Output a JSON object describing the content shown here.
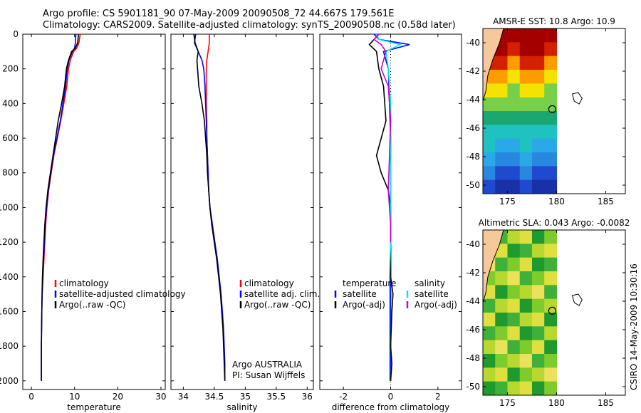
{
  "header": {
    "line1": "Argo profile: CS 5901181_90 07-May-2009 20090508_72 44.667S 179.561E",
    "line2": "Climatology: CARS2009. Satellite-adjusted climatology: synTS_20090508.nc (0.58d later)"
  },
  "side_label": "CSIRO 14-May-2009 10:30:16",
  "colors": {
    "climatology": "#ff0000",
    "satellite": "#0000ff",
    "argo": "#000000",
    "sal_satellite": "#00e5ee",
    "sal_argo": "#cc00cc",
    "land": "#f7c89b"
  },
  "chart_data": [
    {
      "type": "line",
      "panel": "temperature",
      "xlabel": "temperature",
      "ylabel": "",
      "xlim": [
        -2,
        31
      ],
      "ylim": [
        2050,
        0
      ],
      "xticks": [
        0,
        10,
        20,
        30
      ],
      "yticks": [
        0,
        200,
        400,
        600,
        800,
        1000,
        1200,
        1400,
        1600,
        1800,
        2000
      ],
      "legend": [
        "climatology",
        "satellite-adjusted climatology",
        "Argo(..raw -QC)"
      ],
      "series": [
        {
          "name": "climatology",
          "color": "#ff0000",
          "x": [
            11.3,
            11.0,
            10.5,
            9.8,
            9.0,
            8.6,
            8.2,
            7.5,
            6.8,
            6.0,
            5.2,
            4.6,
            4.0,
            3.6,
            3.3,
            3.1,
            2.9,
            2.7,
            2.6,
            2.5
          ],
          "y": [
            0,
            50,
            80,
            100,
            150,
            200,
            300,
            400,
            500,
            600,
            700,
            800,
            900,
            1000,
            1100,
            1200,
            1300,
            1400,
            1450,
            1500
          ]
        },
        {
          "name": "satellite-adjusted climatology",
          "color": "#0000ff",
          "x": [
            10.3,
            10.2,
            10.0,
            9.5,
            8.7,
            8.3,
            7.9,
            7.3,
            6.7,
            5.9,
            5.1,
            4.5,
            3.9,
            3.5,
            3.2,
            3.0,
            2.8,
            2.6,
            2.5,
            2.4,
            2.35,
            2.3,
            2.3,
            2.3
          ],
          "y": [
            0,
            50,
            80,
            100,
            150,
            200,
            300,
            400,
            500,
            600,
            700,
            800,
            900,
            1000,
            1100,
            1200,
            1300,
            1400,
            1500,
            1600,
            1700,
            1800,
            1900,
            2000
          ]
        },
        {
          "name": "Argo(..raw -QC)",
          "color": "#000000",
          "x": [
            10.9,
            10.7,
            10.2,
            9.3,
            8.6,
            8.1,
            7.7,
            7.0,
            6.2,
            5.6,
            5.0,
            4.4,
            3.8,
            3.4,
            3.1,
            2.9,
            2.7,
            2.55,
            2.45,
            2.4,
            2.35,
            2.3,
            2.3,
            2.3
          ],
          "y": [
            0,
            50,
            80,
            100,
            150,
            200,
            300,
            400,
            500,
            600,
            700,
            800,
            900,
            1000,
            1100,
            1200,
            1300,
            1400,
            1500,
            1600,
            1700,
            1800,
            1900,
            2000
          ]
        }
      ]
    },
    {
      "type": "line",
      "panel": "salinity",
      "xlabel": "salinity",
      "xlim": [
        33.8,
        36.1
      ],
      "ylim": [
        2050,
        0
      ],
      "xticks": [
        34,
        34.5,
        35,
        35.5,
        36
      ],
      "legend": [
        "climatology",
        "satellite adj. clim.",
        "Argo(..raw -QC)"
      ],
      "note": [
        "Argo AUSTRALIA",
        "PI: Susan Wijffels"
      ],
      "series": [
        {
          "name": "climatology",
          "color": "#ff0000",
          "x": [
            34.42,
            34.42,
            34.4,
            34.38,
            34.37,
            34.37,
            34.37,
            34.38,
            34.38,
            34.39,
            34.4,
            34.41,
            34.43,
            34.46,
            34.5
          ],
          "y": [
            0,
            50,
            100,
            150,
            200,
            300,
            400,
            500,
            600,
            700,
            800,
            900,
            1000,
            1100,
            1200
          ]
        },
        {
          "name": "satellite adj. clim.",
          "color": "#0000ff",
          "x": [
            34.2,
            34.18,
            34.24,
            34.3,
            34.33,
            34.35,
            34.36,
            34.37,
            34.38,
            34.39,
            34.4,
            34.41,
            34.43,
            34.47,
            34.51,
            34.55,
            34.58,
            34.61,
            34.63,
            34.65,
            34.66,
            34.67,
            34.67
          ],
          "y": [
            0,
            50,
            100,
            150,
            200,
            300,
            400,
            500,
            600,
            700,
            800,
            900,
            1000,
            1100,
            1200,
            1300,
            1400,
            1500,
            1600,
            1700,
            1800,
            1900,
            2000
          ]
        },
        {
          "name": "Argo(..raw -QC)",
          "color": "#000000",
          "x": [
            34.17,
            34.19,
            34.24,
            34.22,
            34.23,
            34.25,
            34.3,
            34.34,
            34.36,
            34.38,
            34.39,
            34.41,
            34.43,
            34.46,
            34.5,
            34.54,
            34.57,
            34.6,
            34.62,
            34.64,
            34.65,
            34.66,
            34.67
          ],
          "y": [
            0,
            50,
            100,
            150,
            200,
            300,
            400,
            500,
            600,
            700,
            800,
            900,
            1000,
            1100,
            1200,
            1300,
            1400,
            1500,
            1600,
            1700,
            1800,
            1900,
            2000
          ]
        }
      ]
    },
    {
      "type": "line",
      "panel": "difference",
      "xlabel": "difference from climatology",
      "xlim": [
        -3,
        3
      ],
      "ylim": [
        2050,
        0
      ],
      "xticks": [
        -2,
        0,
        2
      ],
      "legend_left": [
        "temperature",
        "satellite",
        "Argo(-adj)"
      ],
      "legend_right": [
        "salinity",
        "satellite",
        "Argo(-adj)"
      ],
      "series": [
        {
          "name": "temperature satellite",
          "color": "#0000ff",
          "x": [
            -0.7,
            -0.5,
            0.8,
            -0.3,
            -0.1,
            -0.05,
            0.0,
            0.0,
            0.0,
            0.0,
            0.0,
            0.0,
            0.0,
            0.0,
            0.0,
            0.0,
            0.0,
            0.0
          ],
          "y": [
            0,
            30,
            60,
            100,
            200,
            400,
            600,
            800,
            1000,
            1200,
            1400,
            1500,
            1600,
            1700,
            1800,
            1900,
            1950,
            2000
          ]
        },
        {
          "name": "temperature Argo(-adj)",
          "color": "#000000",
          "x": [
            -0.5,
            -0.7,
            -0.9,
            -0.6,
            -0.5,
            -0.3,
            -0.2,
            -0.6,
            -0.4,
            -0.1,
            0.0,
            0.0,
            0.0,
            0.1,
            0.05,
            0.0,
            0.05,
            0.0
          ],
          "y": [
            0,
            30,
            60,
            100,
            200,
            300,
            500,
            700,
            800,
            900,
            1000,
            1200,
            1400,
            1500,
            1600,
            1800,
            1900,
            2000
          ]
        },
        {
          "name": "salinity satellite",
          "color": "#00e5ee",
          "x": [
            -0.6,
            -0.5,
            0.4,
            -0.2,
            -0.1,
            0.0,
            0.0,
            0.0,
            0.0,
            0.0,
            -0.05,
            -0.05,
            -0.05
          ],
          "y": [
            0,
            30,
            60,
            100,
            200,
            400,
            600,
            800,
            1000,
            1200,
            1400,
            1700,
            2000
          ]
        },
        {
          "name": "salinity Argo(-adj)",
          "color": "#cc00cc",
          "x": [
            -0.5,
            -0.7,
            -0.4,
            -0.2,
            -0.4,
            -0.1,
            0.0,
            -0.1,
            0.0,
            0.0
          ],
          "y": [
            0,
            30,
            60,
            100,
            200,
            300,
            500,
            900,
            1100,
            1200
          ]
        }
      ]
    },
    {
      "type": "heatmap",
      "panel": "sst_map",
      "title": "AMSR-E SST: 10.8 Argo: 10.9",
      "xlim": [
        172.5,
        187
      ],
      "ylim": [
        -50.6,
        -39
      ],
      "xticks": [
        175,
        180,
        185
      ],
      "yticks": [
        -40,
        -42,
        -44,
        -46,
        -48,
        -50
      ],
      "argo_position": [
        179.561,
        -44.667
      ],
      "colors": [
        "#a40000",
        "#d42000",
        "#ff9c00",
        "#f5e200",
        "#78d04a",
        "#1aa870",
        "#1fc2c0",
        "#2aa8e8",
        "#2888e0",
        "#1f4ad0",
        "#1830a8"
      ]
    },
    {
      "type": "heatmap",
      "panel": "sla_map",
      "title": "Altimetric SLA: 0.043 Argo: -0.0082",
      "xlim": [
        172.5,
        187
      ],
      "ylim": [
        -50.6,
        -39
      ],
      "xticks": [
        175,
        180,
        185
      ],
      "yticks": [
        -40,
        -42,
        -44,
        -46,
        -48,
        -50
      ],
      "argo_position": [
        179.561,
        -44.667
      ],
      "colors": [
        "#1f9a2e",
        "#3fb03a",
        "#7ecb2c",
        "#b8d830",
        "#dfe040",
        "#e9e25a"
      ]
    }
  ]
}
